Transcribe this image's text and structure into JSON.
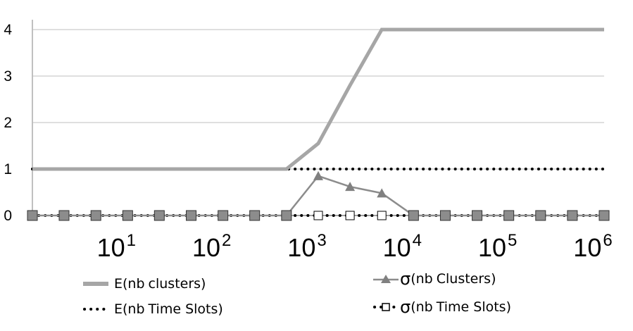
{
  "chart_data": {
    "type": "line",
    "x_scale": "log",
    "x_tick_labels": [
      {
        "base": "10",
        "exp": "1",
        "value": 10
      },
      {
        "base": "10",
        "exp": "2",
        "value": 100
      },
      {
        "base": "10",
        "exp": "3",
        "value": 1000
      },
      {
        "base": "10",
        "exp": "4",
        "value": 10000
      },
      {
        "base": "10",
        "exp": "5",
        "value": 100000
      },
      {
        "base": "10",
        "exp": "6",
        "value": 1000000
      }
    ],
    "y_ticks": [
      0,
      1,
      2,
      3,
      4
    ],
    "ylim": [
      0,
      4
    ],
    "xlim": [
      1,
      1000000
    ],
    "grid": "horizontal",
    "legend_position": "bottom",
    "colors": {
      "e_clusters": "#a6a6a6",
      "sigma_clusters": "#8c8c8c",
      "e_timeslots": "#000000",
      "sigma_timeslots": "#000000",
      "grid": "#bfbfbf",
      "axis": "#808080"
    },
    "series": [
      {
        "name": "E(nb clusters)",
        "style": "thick-line",
        "x": [
          1,
          2.15,
          4.64,
          10,
          21.5,
          46.4,
          100,
          215,
          464,
          1000,
          2154,
          4642,
          10000,
          21544,
          46416,
          100000,
          215443,
          464159,
          1000000
        ],
        "values": [
          1,
          1,
          1,
          1,
          1,
          1,
          1,
          1,
          1,
          1.55,
          2.8,
          4,
          4,
          4,
          4,
          4,
          4,
          4,
          4
        ]
      },
      {
        "name": "E(nb Time Slots)",
        "style": "dotted-line",
        "x": [
          1,
          1000000
        ],
        "values": [
          1,
          1
        ]
      },
      {
        "name": "σ(nb Clusters)",
        "style": "line-triangle",
        "x": [
          1,
          2.15,
          4.64,
          10,
          21.5,
          46.4,
          100,
          215,
          464,
          1000,
          2154,
          4642,
          10000,
          21544,
          46416,
          100000,
          215443,
          464159,
          1000000
        ],
        "values": [
          0,
          0,
          0,
          0,
          0,
          0,
          0,
          0,
          0,
          0.85,
          0.62,
          0.48,
          0,
          0,
          0,
          0,
          0,
          0,
          0
        ]
      },
      {
        "name": "σ(nb Time Slots)",
        "style": "dotted-square",
        "x": [
          1,
          2.15,
          4.64,
          10,
          21.5,
          46.4,
          100,
          215,
          464,
          1000,
          2154,
          4642,
          10000,
          21544,
          46416,
          100000,
          215443,
          464159,
          1000000
        ],
        "values": [
          0,
          0,
          0,
          0,
          0,
          0,
          0,
          0,
          0,
          0,
          0,
          0,
          0,
          0,
          0,
          0,
          0,
          0,
          0
        ]
      }
    ]
  },
  "legend": {
    "e_clusters": {
      "prefix": "E(nb",
      "rest": "clusters)"
    },
    "e_timeslots": {
      "prefix": "E(nb",
      "rest": "Time Slots)"
    },
    "sigma_clusters": {
      "sigma": "σ",
      "prefix": "(nb",
      "rest": "Clusters)"
    },
    "sigma_timeslots": {
      "sigma": "σ",
      "prefix": "(nb",
      "rest": "Time Slots)"
    }
  }
}
